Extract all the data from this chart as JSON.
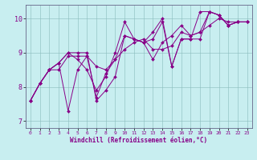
{
  "xlabel": "Windchill (Refroidissement éolien,°C)",
  "background_color": "#c8eef0",
  "line_color": "#880088",
  "xlim": [
    -0.5,
    23.5
  ],
  "ylim": [
    6.8,
    10.4
  ],
  "yticks": [
    7,
    8,
    9,
    10
  ],
  "xticks": [
    0,
    1,
    2,
    3,
    4,
    5,
    6,
    7,
    8,
    9,
    10,
    11,
    12,
    13,
    14,
    15,
    16,
    17,
    18,
    19,
    20,
    21,
    22,
    23
  ],
  "lines": [
    [
      7.6,
      8.1,
      8.5,
      8.5,
      8.9,
      8.9,
      8.9,
      8.6,
      8.5,
      8.8,
      9.1,
      9.3,
      9.4,
      9.1,
      9.1,
      9.2,
      9.6,
      9.5,
      9.6,
      9.8,
      10.0,
      9.9,
      9.9,
      9.9
    ],
    [
      7.6,
      8.1,
      8.5,
      8.7,
      9.0,
      8.8,
      8.5,
      7.9,
      8.3,
      9.0,
      9.9,
      9.4,
      9.3,
      8.8,
      9.3,
      9.5,
      9.8,
      9.5,
      9.6,
      10.2,
      10.1,
      9.8,
      9.9,
      9.9
    ],
    [
      7.6,
      8.1,
      8.5,
      8.7,
      9.0,
      9.0,
      9.0,
      7.6,
      7.9,
      8.3,
      9.5,
      9.4,
      9.3,
      9.4,
      9.9,
      8.6,
      9.4,
      9.4,
      9.4,
      10.2,
      10.1,
      9.8,
      9.9,
      9.9
    ],
    [
      7.6,
      8.1,
      8.5,
      8.7,
      7.3,
      8.5,
      8.9,
      7.7,
      8.4,
      8.8,
      9.5,
      9.4,
      9.3,
      9.6,
      10.0,
      8.6,
      9.4,
      9.4,
      10.2,
      10.2,
      10.1,
      9.8,
      9.9,
      9.9
    ]
  ],
  "marker": "D",
  "markersize": 2.0,
  "linewidth": 0.7
}
